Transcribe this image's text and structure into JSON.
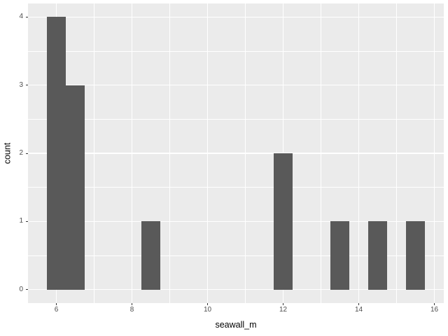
{
  "chart_data": {
    "type": "bar",
    "subtype": "histogram",
    "title": "",
    "xlabel": "seawall_m",
    "ylabel": "count",
    "binwidth": 0.5,
    "bars": [
      {
        "center": 6.0,
        "count": 4
      },
      {
        "center": 6.5,
        "count": 3
      },
      {
        "center": 8.5,
        "count": 1
      },
      {
        "center": 12.0,
        "count": 2
      },
      {
        "center": 13.5,
        "count": 1
      },
      {
        "center": 14.5,
        "count": 1
      },
      {
        "center": 15.5,
        "count": 1
      }
    ],
    "x_ticks": [
      6,
      8,
      10,
      12,
      14,
      16
    ],
    "y_ticks": [
      0,
      1,
      2,
      3,
      4
    ],
    "x_minor": [
      7,
      9,
      11,
      13,
      15
    ],
    "y_minor": [
      0.5,
      1.5,
      2.5,
      3.5
    ],
    "xlim": [
      5.25,
      16.25
    ],
    "ylim": [
      -0.2,
      4.2
    ],
    "grid": "major-and-minor",
    "legend": "none",
    "colors": {
      "bar": "#595959",
      "panel_background": "#EBEBEB",
      "grid": "#FFFFFF",
      "tick_mark": "#333333",
      "axis_text": "#4D4D4D",
      "axis_title": "#000000",
      "plot_background": "#FFFFFF"
    }
  }
}
